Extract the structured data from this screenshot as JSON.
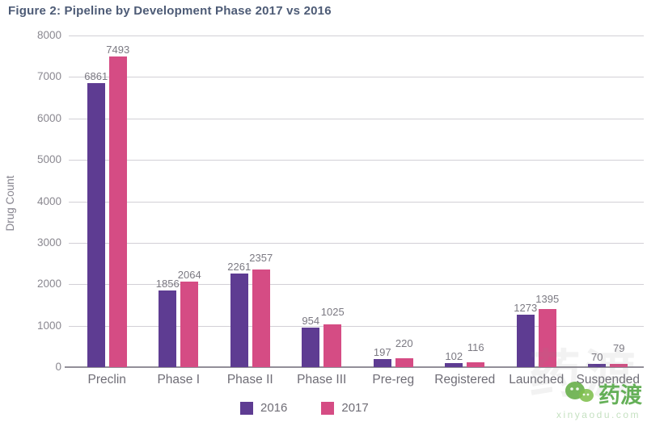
{
  "title": "Figure 2: Pipeline by Development Phase 2017 vs 2016",
  "chart_data": {
    "type": "bar",
    "title": "Figure 2: Pipeline by Development Phase 2017 vs 2016",
    "xlabel": "",
    "ylabel": "Drug Count",
    "ylim": [
      0,
      8000
    ],
    "yticks": [
      0,
      1000,
      2000,
      3000,
      4000,
      5000,
      6000,
      7000,
      8000
    ],
    "grid": true,
    "legend_position": "bottom",
    "categories": [
      "Preclin",
      "Phase I",
      "Phase II",
      "Phase III",
      "Pre-reg",
      "Registered",
      "Launched",
      "Suspended"
    ],
    "series": [
      {
        "name": "2016",
        "color": "#5e3c92",
        "values": [
          6861,
          1856,
          2261,
          954,
          197,
          102,
          1273,
          70
        ]
      },
      {
        "name": "2017",
        "color": "#d54c84",
        "values": [
          7493,
          2064,
          2357,
          1025,
          220,
          116,
          1395,
          79
        ]
      }
    ]
  },
  "colors": {
    "title_text": "#4d5b76",
    "gridline": "#d2d0d6",
    "axis_line": "#928f98",
    "tick_text": "#8a8890",
    "bar_2016": "#5e3c92",
    "bar_2017": "#d54c84",
    "watermark_green": "#4ba33c"
  },
  "watermark": {
    "brand_text": "药渡",
    "domain_text": "xinyaodu.com"
  }
}
